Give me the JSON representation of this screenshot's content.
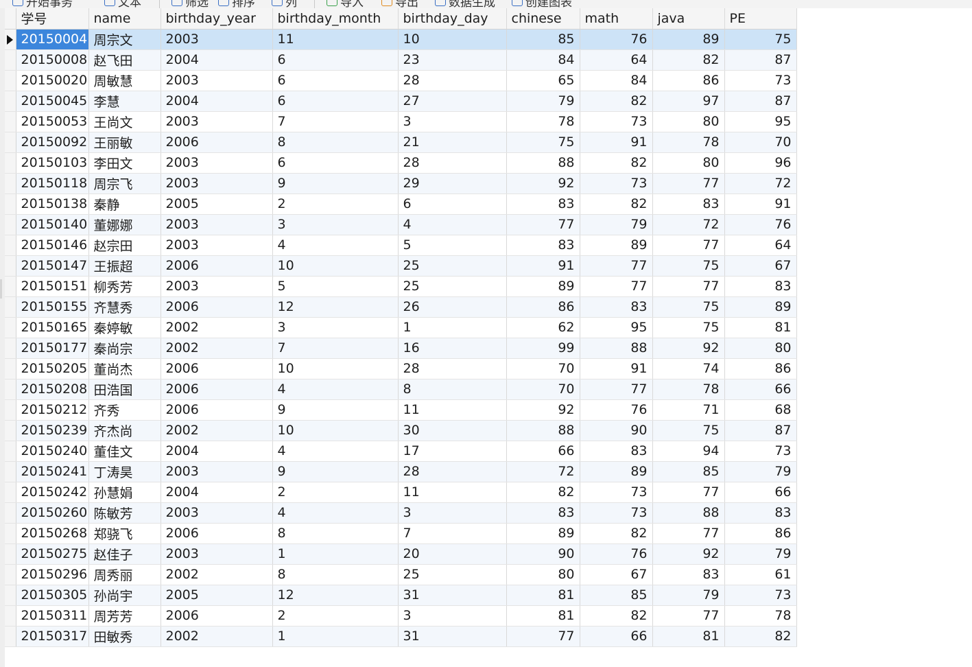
{
  "toolbar": {
    "items": [
      {
        "icon": "transaction-icon",
        "label": "开始事务"
      },
      {
        "icon": "text-icon",
        "label": "文本"
      },
      {
        "icon": "filter-icon",
        "label": "筛选"
      },
      {
        "icon": "sort-icon",
        "label": "排序"
      },
      {
        "icon": "column-icon",
        "label": "列"
      },
      {
        "icon": "import-icon",
        "label": "导入"
      },
      {
        "icon": "export-icon",
        "label": "导出"
      },
      {
        "icon": "data-generate-icon",
        "label": "数据生成"
      },
      {
        "icon": "chart-icon",
        "label": "创建图表"
      }
    ]
  },
  "table": {
    "columns": [
      "学号",
      "name",
      "birthday_year",
      "birthday_month",
      "birthday_day",
      "chinese",
      "math",
      "java",
      "PE"
    ],
    "selected_row": 0,
    "rows": [
      [
        "20150004",
        "周宗文",
        "2003",
        "11",
        "10",
        "85",
        "76",
        "89",
        "75"
      ],
      [
        "20150008",
        "赵飞田",
        "2004",
        "6",
        "23",
        "84",
        "64",
        "82",
        "87"
      ],
      [
        "20150020",
        "周敏慧",
        "2003",
        "6",
        "28",
        "65",
        "84",
        "86",
        "73"
      ],
      [
        "20150045",
        "李慧",
        "2004",
        "6",
        "27",
        "79",
        "82",
        "97",
        "87"
      ],
      [
        "20150053",
        "王尚文",
        "2003",
        "7",
        "3",
        "78",
        "73",
        "80",
        "95"
      ],
      [
        "20150092",
        "王丽敏",
        "2006",
        "8",
        "21",
        "75",
        "91",
        "78",
        "70"
      ],
      [
        "20150103",
        "李田文",
        "2003",
        "6",
        "28",
        "88",
        "82",
        "80",
        "96"
      ],
      [
        "20150118",
        "周宗飞",
        "2003",
        "9",
        "29",
        "92",
        "73",
        "77",
        "72"
      ],
      [
        "20150138",
        "秦静",
        "2005",
        "2",
        "6",
        "83",
        "82",
        "83",
        "91"
      ],
      [
        "20150140",
        "董娜娜",
        "2003",
        "3",
        "4",
        "77",
        "79",
        "72",
        "76"
      ],
      [
        "20150146",
        "赵宗田",
        "2003",
        "4",
        "5",
        "83",
        "89",
        "77",
        "64"
      ],
      [
        "20150147",
        "王振超",
        "2006",
        "10",
        "25",
        "91",
        "77",
        "75",
        "67"
      ],
      [
        "20150151",
        "柳秀芳",
        "2003",
        "5",
        "25",
        "89",
        "77",
        "77",
        "83"
      ],
      [
        "20150155",
        "齐慧秀",
        "2006",
        "12",
        "26",
        "86",
        "83",
        "75",
        "89"
      ],
      [
        "20150165",
        "秦婷敏",
        "2002",
        "3",
        "1",
        "62",
        "95",
        "75",
        "81"
      ],
      [
        "20150177",
        "秦尚宗",
        "2002",
        "7",
        "16",
        "99",
        "88",
        "92",
        "80"
      ],
      [
        "20150205",
        "董尚杰",
        "2006",
        "10",
        "28",
        "70",
        "91",
        "74",
        "86"
      ],
      [
        "20150208",
        "田浩国",
        "2006",
        "4",
        "8",
        "70",
        "77",
        "78",
        "66"
      ],
      [
        "20150212",
        "齐秀",
        "2006",
        "9",
        "11",
        "92",
        "76",
        "71",
        "68"
      ],
      [
        "20150239",
        "齐杰尚",
        "2002",
        "10",
        "30",
        "88",
        "90",
        "75",
        "87"
      ],
      [
        "20150240",
        "董佳文",
        "2004",
        "4",
        "17",
        "66",
        "83",
        "94",
        "73"
      ],
      [
        "20150241",
        "丁涛昊",
        "2003",
        "9",
        "28",
        "72",
        "89",
        "85",
        "79"
      ],
      [
        "20150242",
        "孙慧娟",
        "2004",
        "2",
        "11",
        "82",
        "73",
        "77",
        "66"
      ],
      [
        "20150260",
        "陈敏芳",
        "2003",
        "4",
        "3",
        "83",
        "73",
        "88",
        "83"
      ],
      [
        "20150268",
        "郑骁飞",
        "2006",
        "8",
        "7",
        "89",
        "82",
        "77",
        "86"
      ],
      [
        "20150275",
        "赵佳子",
        "2003",
        "1",
        "20",
        "90",
        "76",
        "92",
        "79"
      ],
      [
        "20150296",
        "周秀丽",
        "2002",
        "8",
        "25",
        "80",
        "67",
        "83",
        "61"
      ],
      [
        "20150305",
        "孙尚宇",
        "2005",
        "12",
        "31",
        "81",
        "85",
        "79",
        "73"
      ],
      [
        "20150311",
        "周芳芳",
        "2006",
        "2",
        "3",
        "81",
        "82",
        "77",
        "78"
      ],
      [
        "20150317",
        "田敏秀",
        "2002",
        "1",
        "31",
        "77",
        "66",
        "81",
        "82"
      ]
    ]
  }
}
